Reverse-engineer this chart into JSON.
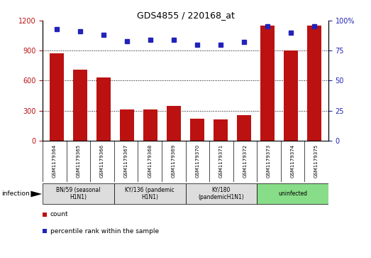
{
  "title": "GDS4855 / 220168_at",
  "samples": [
    "GSM1179364",
    "GSM1179365",
    "GSM1179366",
    "GSM1179367",
    "GSM1179368",
    "GSM1179369",
    "GSM1179370",
    "GSM1179371",
    "GSM1179372",
    "GSM1179373",
    "GSM1179374",
    "GSM1179375"
  ],
  "counts": [
    870,
    710,
    630,
    310,
    315,
    350,
    220,
    210,
    255,
    1150,
    900,
    1150
  ],
  "percentiles": [
    93,
    91,
    88,
    83,
    84,
    84,
    80,
    80,
    82,
    95,
    90,
    95
  ],
  "bar_color": "#bb1111",
  "dot_color": "#2222bb",
  "left_ylim": [
    0,
    1200
  ],
  "right_ylim": [
    0,
    100
  ],
  "left_yticks": [
    0,
    300,
    600,
    900,
    1200
  ],
  "right_yticks": [
    0,
    25,
    50,
    75,
    100
  ],
  "right_yticklabels": [
    "0",
    "25",
    "50",
    "75",
    "100%"
  ],
  "grid_yticks": [
    300,
    600,
    900
  ],
  "groups": [
    {
      "label": "BN/59 (seasonal\nH1N1)",
      "start": 0,
      "end": 3,
      "color": "#dddddd"
    },
    {
      "label": "KY/136 (pandemic\nH1N1)",
      "start": 3,
      "end": 6,
      "color": "#dddddd"
    },
    {
      "label": "KY/180\n(pandemicH1N1)",
      "start": 6,
      "end": 9,
      "color": "#dddddd"
    },
    {
      "label": "uninfected",
      "start": 9,
      "end": 12,
      "color": "#88dd88"
    }
  ],
  "infection_label": "infection",
  "legend_count_label": "count",
  "legend_percentile_label": "percentile rank within the sample",
  "bg_color": "#ffffff"
}
